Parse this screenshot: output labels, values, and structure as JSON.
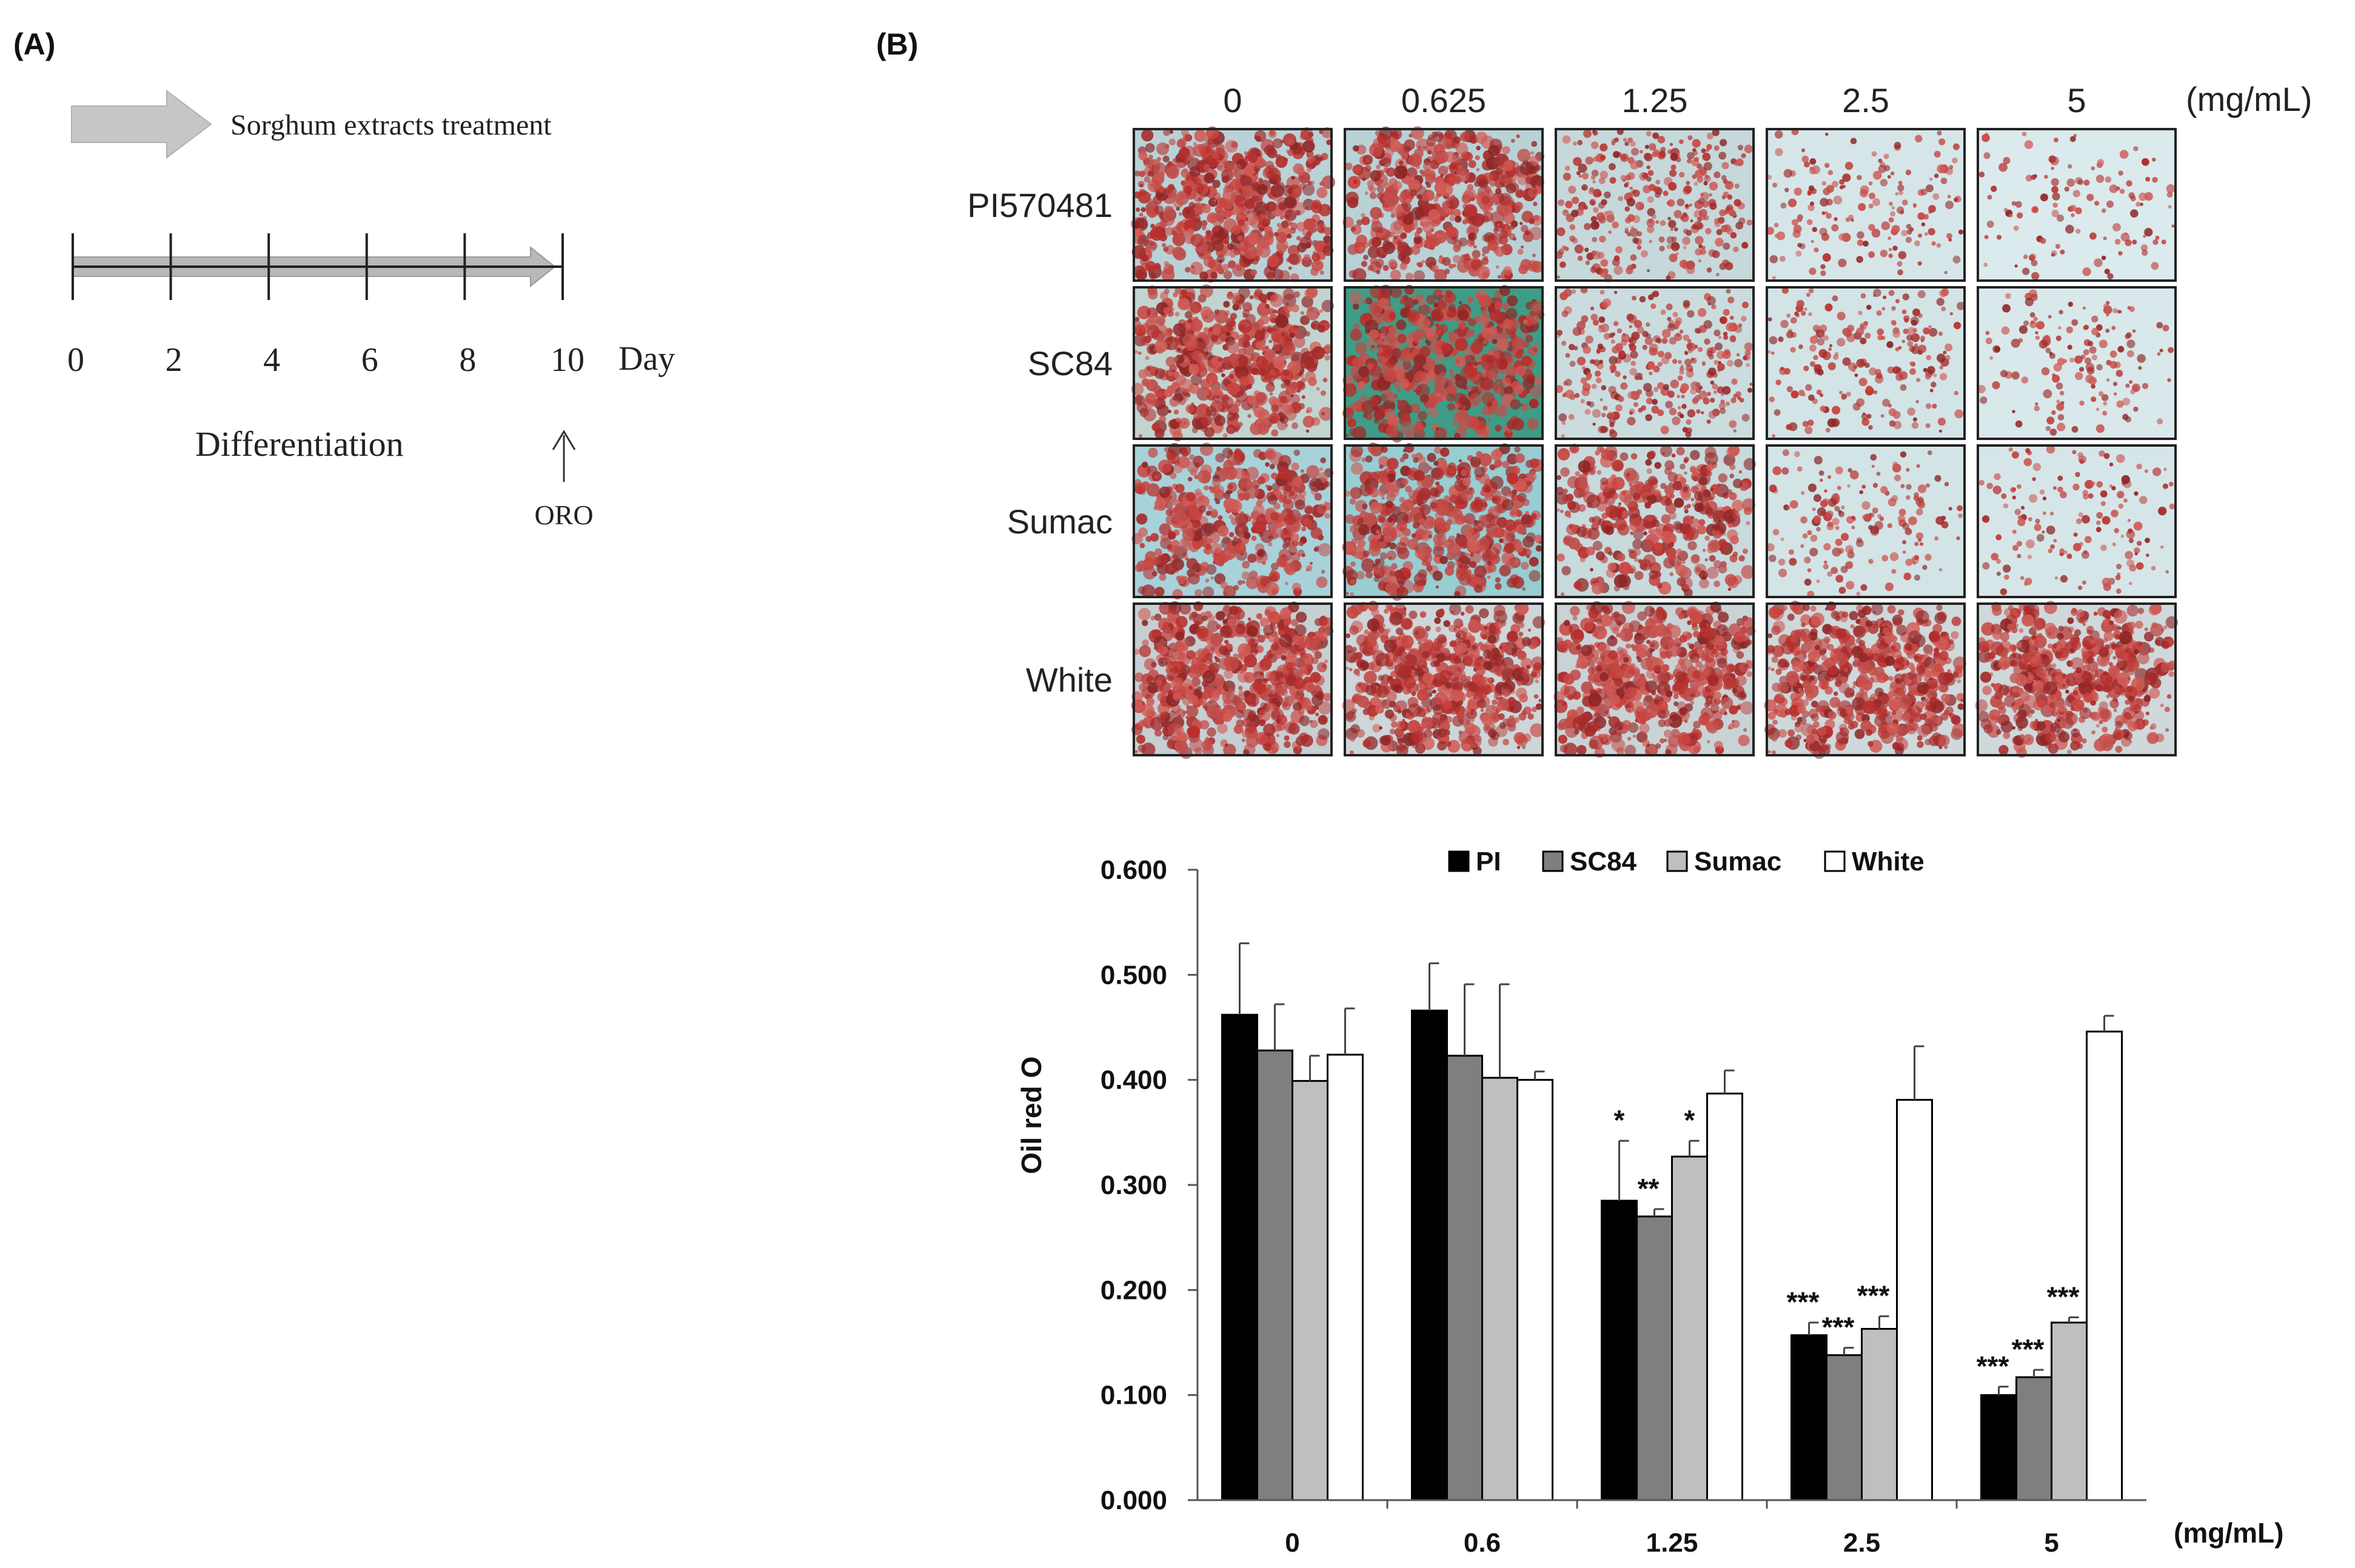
{
  "panel_a": {
    "label": "(A)",
    "treatment_label": "Sorghum extracts treatment",
    "day_ticks": [
      "0",
      "2",
      "4",
      "6",
      "8",
      "10"
    ],
    "day_unit": "Day",
    "phase_label": "Differentiation",
    "endpoint_label": "ORO",
    "colors": {
      "arrow_fill": "#c6c6c6",
      "arrow_band": "#b8b8b8",
      "line": "#222222"
    }
  },
  "panel_b": {
    "label": "(B)",
    "micrograph_grid": {
      "column_headers": [
        "0",
        "0.625",
        "1.25",
        "2.5",
        "5"
      ],
      "unit_label": "(mg/mL)",
      "row_labels": [
        "PI570481",
        "SC84",
        "Sumac",
        "White"
      ],
      "stain_levels": [
        [
          0.92,
          0.82,
          0.45,
          0.18,
          0.1
        ],
        [
          0.9,
          0.8,
          0.45,
          0.25,
          0.14
        ],
        [
          0.7,
          0.75,
          0.55,
          0.18,
          0.14
        ],
        [
          0.92,
          0.88,
          0.88,
          0.85,
          0.82
        ]
      ],
      "background_hues": [
        [
          "#b9d2d6",
          "#b9d2d6",
          "#c7d8da",
          "#d6e6e8",
          "#dbeaec"
        ],
        [
          "#c2d4d0",
          "#3f9c86",
          "#cbdcde",
          "#d3e4e6",
          "#d9e8ea"
        ],
        [
          "#a8d2da",
          "#98cdd2",
          "#c8dadc",
          "#d3e4e6",
          "#d6e6e8"
        ],
        [
          "#c6cfd2",
          "#cdd6d8",
          "#c9d3d5",
          "#cfd8da",
          "#cfd8da"
        ]
      ],
      "stain_color": "#c23a36"
    }
  },
  "chart_data": {
    "type": "bar",
    "ylabel": "Oil red O",
    "xlabel": "(mg/mL)",
    "categories": [
      "0",
      "0.6",
      "1.25",
      "2.5",
      "5"
    ],
    "ylim": [
      0,
      0.6
    ],
    "ytick_labels": [
      "0.000",
      "0.100",
      "0.200",
      "0.300",
      "0.400",
      "0.500",
      "0.600"
    ],
    "legend_position": "top",
    "grid": false,
    "series": [
      {
        "name": "PI",
        "color": "#000000",
        "values": [
          0.462,
          0.466,
          0.285,
          0.157,
          0.1
        ],
        "errors": [
          0.068,
          0.045,
          0.057,
          0.012,
          0.008
        ],
        "significance": [
          "",
          "",
          "*",
          "***",
          "***"
        ]
      },
      {
        "name": "SC84",
        "color": "#7f7f7f",
        "values": [
          0.428,
          0.423,
          0.27,
          0.138,
          0.117
        ],
        "errors": [
          0.044,
          0.068,
          0.007,
          0.007,
          0.007
        ],
        "significance": [
          "",
          "",
          "**",
          "***",
          "***"
        ]
      },
      {
        "name": "Sumac",
        "color": "#bfbfbf",
        "values": [
          0.399,
          0.402,
          0.327,
          0.163,
          0.169
        ],
        "errors": [
          0.024,
          0.089,
          0.015,
          0.012,
          0.005
        ],
        "significance": [
          "",
          "",
          "*",
          "***",
          "***"
        ]
      },
      {
        "name": "White",
        "color": "#ffffff",
        "values": [
          0.424,
          0.4,
          0.387,
          0.381,
          0.446
        ],
        "errors": [
          0.044,
          0.008,
          0.022,
          0.051,
          0.015
        ],
        "significance": [
          "",
          "",
          "",
          "",
          ""
        ]
      }
    ]
  }
}
